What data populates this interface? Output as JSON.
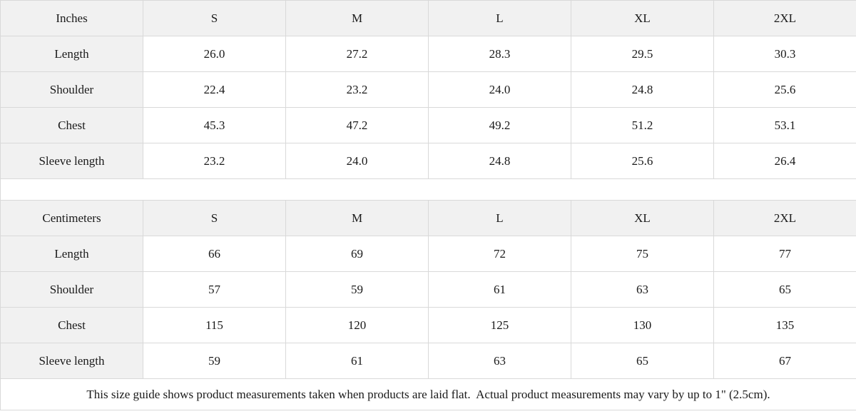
{
  "colors": {
    "header_bg": "#f1f1f1",
    "cell_bg": "#ffffff",
    "border": "#d9d9d9",
    "text": "#1a1a1a"
  },
  "size_chart": {
    "sizes": [
      "S",
      "M",
      "L",
      "XL",
      "2XL"
    ],
    "tables": [
      {
        "unit_label": "Inches",
        "rows": [
          {
            "label": "Length",
            "values": [
              "26.0",
              "27.2",
              "28.3",
              "29.5",
              "30.3"
            ]
          },
          {
            "label": "Shoulder",
            "values": [
              "22.4",
              "23.2",
              "24.0",
              "24.8",
              "25.6"
            ]
          },
          {
            "label": "Chest",
            "values": [
              "45.3",
              "47.2",
              "49.2",
              "51.2",
              "53.1"
            ]
          },
          {
            "label": "Sleeve length",
            "values": [
              "23.2",
              "24.0",
              "24.8",
              "25.6",
              "26.4"
            ]
          }
        ]
      },
      {
        "unit_label": "Centimeters",
        "rows": [
          {
            "label": "Length",
            "values": [
              "66",
              "69",
              "72",
              "75",
              "77"
            ]
          },
          {
            "label": "Shoulder",
            "values": [
              "57",
              "59",
              "61",
              "63",
              "65"
            ]
          },
          {
            "label": "Chest",
            "values": [
              "115",
              "120",
              "125",
              "130",
              "135"
            ]
          },
          {
            "label": "Sleeve length",
            "values": [
              "59",
              "61",
              "63",
              "65",
              "67"
            ]
          }
        ]
      }
    ],
    "footnote": "This size guide shows product measurements taken when products are laid flat.  Actual product measurements may vary by up to 1\" (2.5cm)."
  }
}
